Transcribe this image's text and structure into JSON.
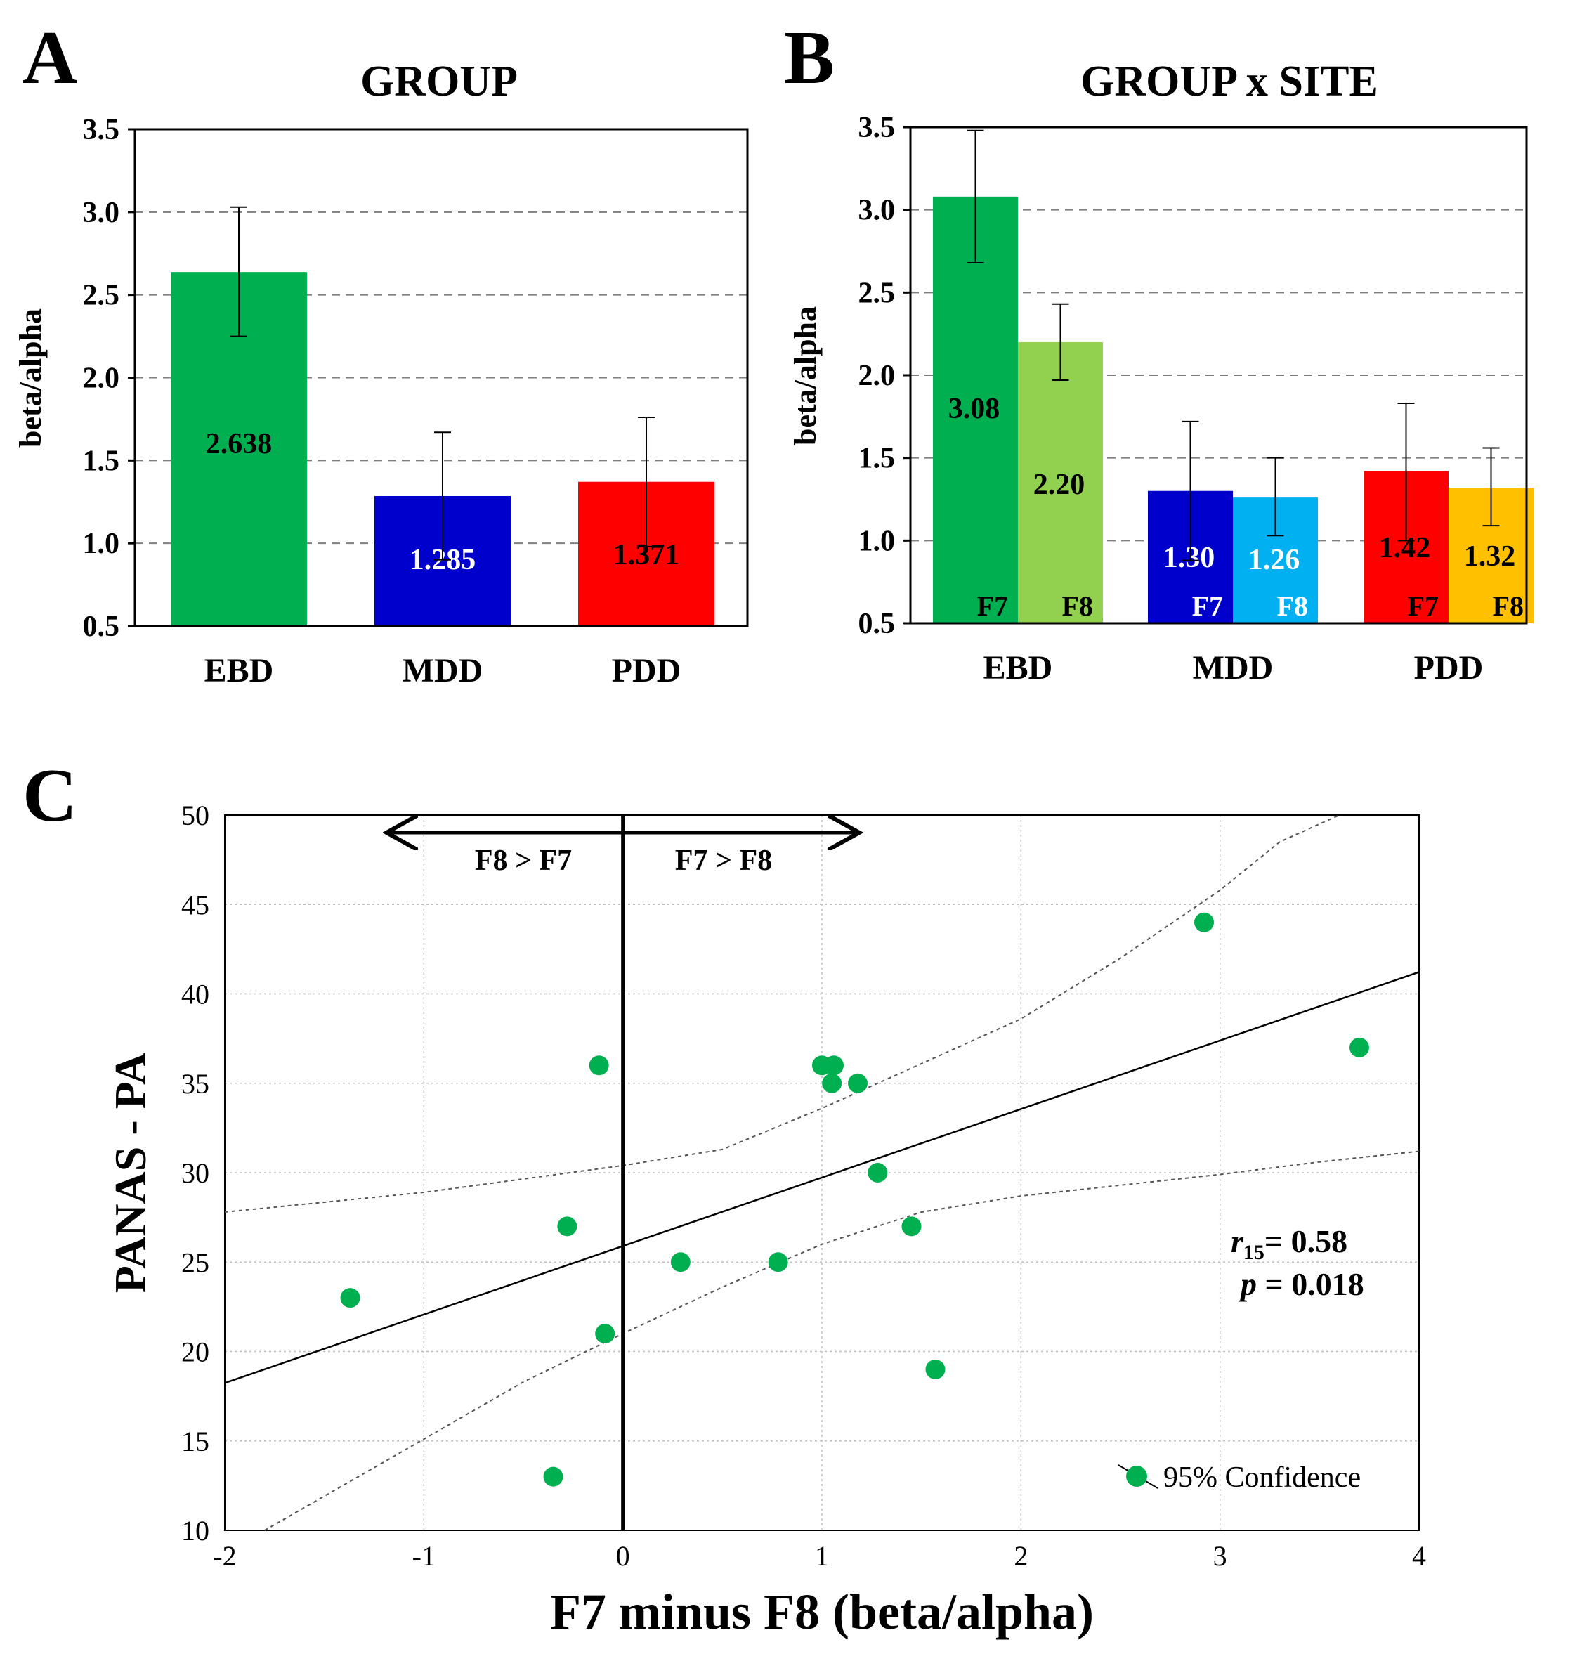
{
  "panels": {
    "a_letter": "A",
    "b_letter": "B",
    "c_letter": "C"
  },
  "colors": {
    "ebd": "#00b050",
    "ebd_f8": "#92d050",
    "mdd": "#0000cc",
    "mdd_f8": "#00b0f0",
    "pdd": "#ff0000",
    "pdd_f8": "#ffc000",
    "point": "#00b050"
  },
  "chart_data": [
    {
      "type": "bar",
      "title": "GROUP",
      "xlabel": "",
      "ylabel": "beta/alpha",
      "ylim": [
        0.5,
        3.5
      ],
      "yticks": [
        "0.5",
        "1.0",
        "1.5",
        "2.0",
        "2.5",
        "3.0",
        "3.5"
      ],
      "categories": [
        "EBD",
        "MDD",
        "PDD"
      ],
      "values": [
        2.638,
        1.285,
        1.371
      ],
      "value_labels": [
        "2.638",
        "1.285",
        "1.371"
      ],
      "error_low": [
        2.25,
        0.9,
        0.98
      ],
      "error_high": [
        3.03,
        1.67,
        1.76
      ],
      "grid": "dashed horizontal"
    },
    {
      "type": "bar",
      "title": "GROUP x SITE",
      "xlabel": "",
      "ylabel": "beta/alpha",
      "ylim": [
        0.5,
        3.5
      ],
      "yticks": [
        "0.5",
        "1.0",
        "1.5",
        "2.0",
        "2.5",
        "3.0",
        "3.5"
      ],
      "categories": [
        "EBD",
        "MDD",
        "PDD"
      ],
      "series": [
        {
          "name": "F7",
          "values": [
            3.08,
            1.3,
            1.42
          ],
          "value_labels": [
            "3.08",
            "1.30",
            "1.42"
          ],
          "error_low": [
            2.68,
            0.88,
            1.0
          ],
          "error_high": [
            3.48,
            1.72,
            1.83
          ]
        },
        {
          "name": "F8",
          "values": [
            2.2,
            1.26,
            1.32
          ],
          "value_labels": [
            "2.20",
            "1.26",
            "1.32"
          ],
          "error_low": [
            1.97,
            1.03,
            1.09
          ],
          "error_high": [
            2.43,
            1.5,
            1.56
          ]
        }
      ],
      "grid": "dashed horizontal"
    },
    {
      "type": "scatter",
      "title": "",
      "xlabel": "F7 minus F8 (beta/alpha)",
      "ylabel": "PANAS - PA",
      "xlim": [
        -2,
        4
      ],
      "ylim": [
        10,
        50
      ],
      "xticks": [
        "-2",
        "-1",
        "0",
        "1",
        "2",
        "3",
        "4"
      ],
      "yticks": [
        "10",
        "15",
        "20",
        "25",
        "30",
        "35",
        "40",
        "45",
        "50"
      ],
      "x": [
        -1.37,
        -0.35,
        -0.28,
        -0.12,
        -0.09,
        0.29,
        0.78,
        1.0,
        1.05,
        1.06,
        1.18,
        1.28,
        1.45,
        1.57,
        2.92,
        3.7
      ],
      "y": [
        23,
        13,
        27,
        36,
        21,
        25,
        25,
        36,
        35,
        36,
        35,
        30,
        27,
        19,
        44,
        37
      ],
      "fit_line": {
        "intercept": 25.9,
        "slope": 3.83
      },
      "confidence_upper": [
        [
          -2,
          27.8
        ],
        [
          -1,
          28.9
        ],
        [
          0,
          30.4
        ],
        [
          0.5,
          31.3
        ],
        [
          1,
          33.6
        ],
        [
          1.5,
          36.1
        ],
        [
          2,
          38.6
        ],
        [
          2.5,
          42.0
        ],
        [
          3,
          45.8
        ],
        [
          3.3,
          48.5
        ],
        [
          3.6,
          50.0
        ]
      ],
      "confidence_lower": [
        [
          -1.8,
          10.0
        ],
        [
          -1,
          15.1
        ],
        [
          -0.5,
          18.3
        ],
        [
          0,
          21.0
        ],
        [
          0.5,
          23.6
        ],
        [
          1,
          26.0
        ],
        [
          1.5,
          27.8
        ],
        [
          2,
          28.7
        ],
        [
          2.5,
          29.3
        ],
        [
          3,
          29.9
        ],
        [
          3.5,
          30.6
        ],
        [
          4,
          31.2
        ]
      ],
      "divider_x": 0,
      "arrow_left_label": "F8 > F7",
      "arrow_right_label": "F7 > F8",
      "stat_r_symbol": "r",
      "stat_r_subscript": "15",
      "stat_r_value": "= 0.58",
      "stat_p_symbol": "p",
      "stat_p_value": " = 0.018",
      "legend": "95% Confidence"
    }
  ]
}
